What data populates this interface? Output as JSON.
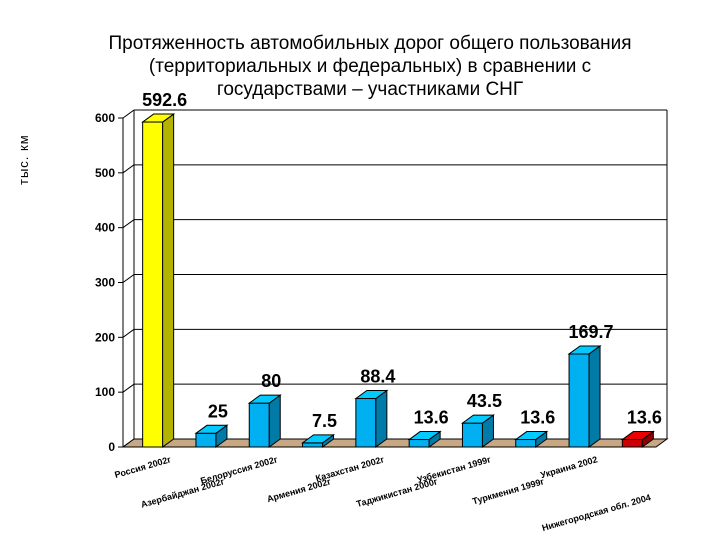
{
  "chart_data": {
    "type": "bar",
    "title_lines": [
      "Протяженность  автомобильных дорог общего пользования",
      "(территориальных и федеральных) в сравнении с",
      "государствами – участниками СНГ"
    ],
    "ylabel": "тыс. км",
    "ylim": [
      0,
      600
    ],
    "yticks": [
      "0",
      "100",
      "200",
      "300",
      "400",
      "500",
      "600"
    ],
    "grid": true,
    "categories": [
      "Россия 2002г",
      "Азербайджан 2002г",
      "Белоруссия 2002г",
      "Армения 2002г",
      "Казахстан 2002г",
      "Таджикистан 2000г",
      "Узбекистан 1999г",
      "Туркмения 1999г",
      "Украина 2002",
      "Нижегородская обл. 2004"
    ],
    "values": [
      592.6,
      25,
      80,
      7.5,
      88.4,
      13.6,
      43.5,
      13.6,
      169.7,
      13.6
    ],
    "value_labels": [
      "592.6",
      "25",
      "80",
      "7.5",
      "88.4",
      "13.6",
      "43.5",
      "13.6",
      "169.7",
      "13.6"
    ],
    "colors": {
      "highlight": "#ffff00",
      "default": "#00b0f0",
      "region": "#cc0000",
      "floor": "#c8a884"
    },
    "bar_colors": [
      "highlight",
      "default",
      "default",
      "default",
      "default",
      "default",
      "default",
      "default",
      "default",
      "region"
    ]
  }
}
